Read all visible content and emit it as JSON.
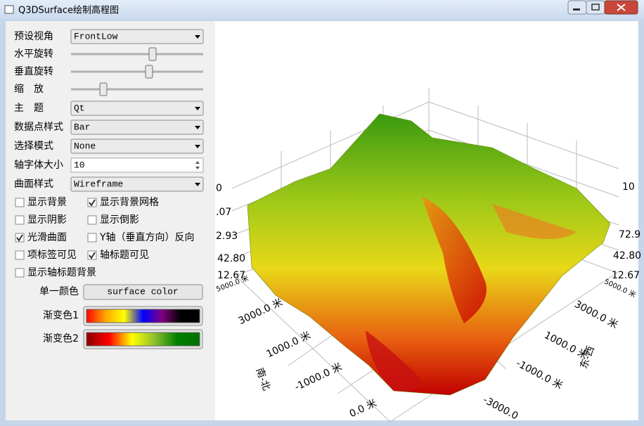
{
  "window": {
    "title": "Q3DSurface绘制高程图"
  },
  "form": [
    {
      "label": "预设视角",
      "widget": "combo",
      "value": "FrontLow"
    },
    {
      "label": "水平旋转",
      "widget": "slider"
    },
    {
      "label": "垂直旋转",
      "widget": "slider"
    },
    {
      "label": "缩　放",
      "widget": "slider"
    },
    {
      "label": "主　题",
      "widget": "combo",
      "value": "Qt"
    },
    {
      "label": "数据点样式",
      "widget": "combo",
      "value": "Bar"
    },
    {
      "label": "选择模式",
      "widget": "combo",
      "value": "None"
    },
    {
      "label": "轴字体大小",
      "widget": "spin",
      "value": "10"
    },
    {
      "label": "曲面样式",
      "widget": "combo",
      "value": "Wireframe"
    }
  ],
  "checkboxes": [
    [
      {
        "label": "显示背景",
        "checked": false
      },
      {
        "label": "显示背景网格",
        "checked": true
      }
    ],
    [
      {
        "label": "显示阴影",
        "checked": false
      },
      {
        "label": "显示倒影",
        "checked": false
      }
    ],
    [
      {
        "label": "光滑曲面",
        "checked": true
      },
      {
        "label": "Y轴（垂直方向）反向",
        "checked": false
      }
    ],
    [
      {
        "label": "项标签可见",
        "checked": false
      },
      {
        "label": "轴标题可见",
        "checked": true
      }
    ],
    [
      {
        "label": "显示轴标题背景",
        "checked": false
      }
    ]
  ],
  "colors": [
    {
      "label": "单一颜色",
      "button": "surface color"
    },
    {
      "label": "渐变色1",
      "gradient": [
        "#ff0000",
        "#ffa500",
        "#ffff00",
        "#0000ff",
        "#800080",
        "#000000",
        "#000000"
      ]
    },
    {
      "label": "渐变色2",
      "gradient": [
        "#8b0000",
        "#ff0000",
        "#ffff00",
        "#90c030",
        "#008000",
        "#007000"
      ]
    }
  ],
  "plot": {
    "labels": [
      "0",
      ".07",
      "2.93",
      "42.80",
      "12.67",
      "10",
      "72.9",
      "42.80",
      "12.67",
      "5000.0 米",
      "3000.0 米",
      "1000.0 米",
      "-1000.0 米",
      "0.0 米",
      "南-北",
      "5000.0 米",
      "3000.0 米",
      "1000.0 米",
      "-1000.0 米",
      "-3000.0",
      "东-西"
    ]
  }
}
